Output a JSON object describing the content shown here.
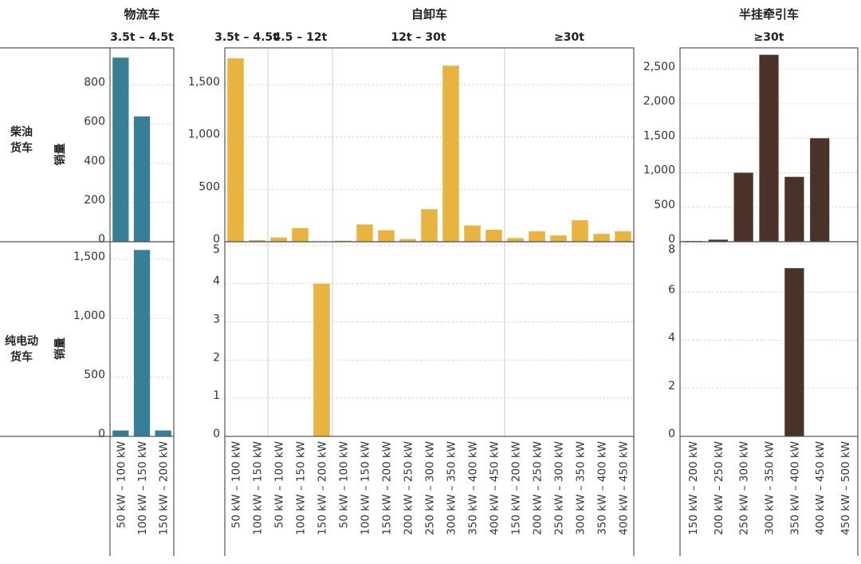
{
  "chart_data": {
    "type": "bar",
    "row_labels": [
      {
        "lines": [
          "柴油",
          "货车"
        ],
        "axis_label": "销量"
      },
      {
        "lines": [
          "纯电动",
          "货车"
        ],
        "axis_label": "销量"
      }
    ],
    "panels": [
      {
        "title": "物流车",
        "color": "#377f96",
        "groups": [
          {
            "label": "3.5t – 4.5t",
            "categories": [
              "50 kW – 100 kW",
              "100 kW – 150 kW",
              "150 kW – 200 kW"
            ]
          }
        ],
        "rows": [
          {
            "values": [
              940,
              640,
              0
            ],
            "ylim": [
              0,
              990
            ],
            "ticks": [
              0,
              200,
              400,
              600,
              800
            ],
            "tick_labels": [
              "0",
              "200",
              "400",
              "600",
              "800"
            ]
          },
          {
            "values": [
              50,
              1580,
              50
            ],
            "ylim": [
              0,
              1650
            ],
            "ticks": [
              0,
              500,
              1000,
              1500
            ],
            "tick_labels": [
              "0",
              "500",
              "1,000",
              "1,500"
            ]
          }
        ]
      },
      {
        "title": "自卸车",
        "color": "#e8b33f",
        "groups": [
          {
            "label": "3.5t – 4.5t",
            "categories": [
              "50 kW – 100 kW",
              "100 kW – 150 kW"
            ]
          },
          {
            "label": "4.5 – 12t",
            "categories": [
              "50 kW – 100 kW",
              "100 kW – 150 kW",
              "150 kW – 200 kW"
            ]
          },
          {
            "label": "12t – 30t",
            "categories": [
              "50 kW – 100 kW",
              "100 kW – 150 kW",
              "150 kW – 200 kW",
              "200 kW – 250 kW",
              "250 kW – 300 kW",
              "300 kW – 350 kW",
              "350 kW – 400 kW",
              "400 kW – 450 kW"
            ]
          },
          {
            "label": "≥30t",
            "categories": [
              "150 kW – 200 kW",
              "200 kW – 250 kW",
              "250 kW – 300 kW",
              "300 kW – 350 kW",
              "350 kW – 400 kW",
              "400 kW – 450 kW"
            ]
          }
        ],
        "rows": [
          {
            "values": [
              1750,
              15,
              40,
              130,
              0,
              10,
              165,
              110,
              25,
              310,
              1680,
              155,
              115,
              35,
              100,
              60,
              205,
              75,
              100
            ],
            "ylim": [
              0,
              1850
            ],
            "ticks": [
              0,
              500,
              1000,
              1500
            ],
            "tick_labels": [
              "0",
              "500",
              "1,000",
              "1,500"
            ]
          },
          {
            "values": [
              0,
              0,
              0,
              0,
              4,
              0,
              0,
              0,
              0,
              0,
              0,
              0,
              0,
              0,
              0,
              0,
              0,
              0,
              0
            ],
            "ylim": [
              0,
              5.1
            ],
            "ticks": [
              0,
              1,
              2,
              3,
              4,
              5
            ],
            "tick_labels": [
              "0",
              "1",
              "2",
              "3",
              "4",
              "5"
            ]
          }
        ]
      },
      {
        "title": "半挂牵引车",
        "color": "#4a3228",
        "groups": [
          {
            "label": "≥30t",
            "categories": [
              "150 kW – 200 kW",
              "200 kW – 250 kW",
              "250 kW – 300 kW",
              "300 kW – 350 kW",
              "350 kW – 400 kW",
              "400 kW – 450 kW",
              "450 kW – 500 kW"
            ]
          }
        ],
        "rows": [
          {
            "values": [
              10,
              30,
              1000,
              2710,
              940,
              1500,
              5
            ],
            "ylim": [
              0,
              2810
            ],
            "ticks": [
              0,
              500,
              1000,
              1500,
              2000,
              2500
            ],
            "tick_labels": [
              "0",
              "500",
              "1,000",
              "1,500",
              "2,000",
              "2,500"
            ]
          },
          {
            "values": [
              0,
              0,
              0,
              0,
              7,
              0,
              0
            ],
            "ylim": [
              0,
              8.1
            ],
            "ticks": [
              0,
              2,
              4,
              6,
              8
            ],
            "tick_labels": [
              "0",
              "2",
              "4",
              "6",
              "8"
            ]
          }
        ]
      }
    ]
  }
}
